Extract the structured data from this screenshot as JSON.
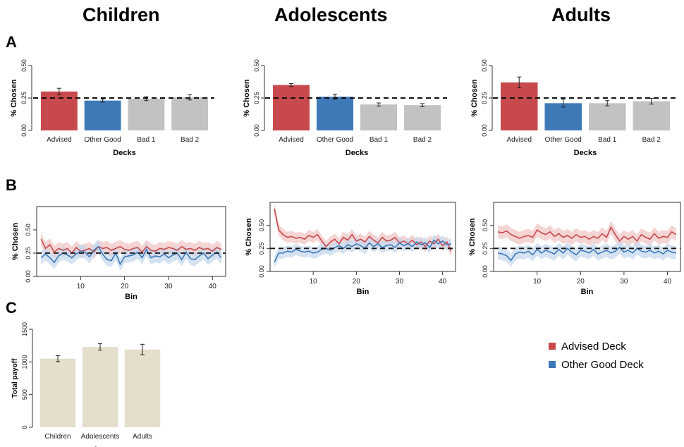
{
  "group_titles": [
    "Children",
    "Adolescents",
    "Adults"
  ],
  "panel_letters": [
    "A",
    "B",
    "C"
  ],
  "legend": [
    {
      "label": "Advised Deck",
      "color": "#c8494b"
    },
    {
      "label": "Other Good Deck",
      "color": "#3f79b8"
    }
  ],
  "colors": {
    "advised": "#c8494b",
    "other_good": "#3f79b8",
    "bad": "#c2c2c2",
    "payoff": "#e3dfcc",
    "advised_band": "#f2c6c6",
    "other_band": "#c6d8ee"
  },
  "chart_data": [
    {
      "type": "bar",
      "group": "Children",
      "categories": [
        "Advised",
        "Other Good",
        "Bad 1",
        "Bad 2"
      ],
      "values": [
        0.3,
        0.23,
        0.245,
        0.255
      ],
      "errors": [
        0.025,
        0.012,
        0.015,
        0.02
      ],
      "reference_line": 0.25,
      "xlabel": "Decks",
      "ylabel": "% Chosen",
      "ylim": [
        0,
        0.5
      ],
      "yticks": [
        "0.00",
        "0.25",
        "0.50"
      ]
    },
    {
      "type": "bar",
      "group": "Adolescents",
      "categories": [
        "Advised",
        "Other Good",
        "Bad 1",
        "Bad 2"
      ],
      "values": [
        0.35,
        0.26,
        0.2,
        0.195
      ],
      "errors": [
        0.012,
        0.02,
        0.012,
        0.012
      ],
      "reference_line": 0.25,
      "xlabel": "Decks",
      "ylabel": "% Chosen",
      "ylim": [
        0,
        0.5
      ],
      "yticks": [
        "0.00",
        "0.25",
        "0.50"
      ]
    },
    {
      "type": "bar",
      "group": "Adults",
      "categories": [
        "Advised",
        "Other Good",
        "Bad 1",
        "Bad 2"
      ],
      "values": [
        0.37,
        0.21,
        0.21,
        0.225
      ],
      "errors": [
        0.042,
        0.03,
        0.02,
        0.022
      ],
      "reference_line": 0.25,
      "xlabel": "Decks",
      "ylabel": "% Chosen",
      "ylim": [
        0,
        0.5
      ],
      "yticks": [
        "0.00",
        "0.25",
        "0.50"
      ]
    },
    {
      "type": "line",
      "group": "Children",
      "xlabel": "Bin",
      "ylabel": "% Chosen",
      "xlim": [
        0,
        43
      ],
      "ylim": [
        0,
        0.75
      ],
      "xticks": [
        10,
        20,
        30,
        40
      ],
      "yticks": [
        "0.00",
        "0.25",
        "0.50"
      ],
      "reference_line": 0.25,
      "band_halfwidth": 0.07,
      "x": [
        1,
        2,
        3,
        4,
        5,
        6,
        7,
        8,
        9,
        10,
        11,
        12,
        13,
        14,
        15,
        16,
        17,
        18,
        19,
        20,
        21,
        22,
        23,
        24,
        25,
        26,
        27,
        28,
        29,
        30,
        31,
        32,
        33,
        34,
        35,
        36,
        37,
        38,
        39,
        40,
        41,
        42
      ],
      "series": [
        {
          "key": "advised",
          "values": [
            0.4,
            0.3,
            0.34,
            0.26,
            0.3,
            0.28,
            0.3,
            0.25,
            0.31,
            0.27,
            0.28,
            0.3,
            0.26,
            0.32,
            0.3,
            0.31,
            0.28,
            0.3,
            0.32,
            0.29,
            0.28,
            0.3,
            0.31,
            0.26,
            0.32,
            0.28,
            0.27,
            0.3,
            0.29,
            0.31,
            0.3,
            0.28,
            0.32,
            0.29,
            0.3,
            0.28,
            0.31,
            0.29,
            0.3,
            0.27,
            0.31,
            0.29
          ]
        },
        {
          "key": "other_good",
          "values": [
            0.2,
            0.24,
            0.2,
            0.15,
            0.22,
            0.25,
            0.23,
            0.2,
            0.24,
            0.27,
            0.26,
            0.21,
            0.28,
            0.32,
            0.24,
            0.18,
            0.17,
            0.25,
            0.13,
            0.21,
            0.22,
            0.23,
            0.26,
            0.2,
            0.29,
            0.2,
            0.22,
            0.21,
            0.24,
            0.2,
            0.23,
            0.25,
            0.18,
            0.26,
            0.19,
            0.18,
            0.22,
            0.25,
            0.19,
            0.23,
            0.26,
            0.2
          ]
        }
      ]
    },
    {
      "type": "line",
      "group": "Adolescents",
      "xlabel": "Bin",
      "ylabel": "% Chosen",
      "xlim": [
        0,
        43
      ],
      "ylim": [
        0,
        0.75
      ],
      "xticks": [
        10,
        20,
        30,
        40
      ],
      "yticks": [
        "0.00",
        "0.25",
        "0.50"
      ],
      "reference_line": 0.25,
      "band_halfwidth": 0.06,
      "x": [
        1,
        2,
        3,
        4,
        5,
        6,
        7,
        8,
        9,
        10,
        11,
        12,
        13,
        14,
        15,
        16,
        17,
        18,
        19,
        20,
        21,
        22,
        23,
        24,
        25,
        26,
        27,
        28,
        29,
        30,
        31,
        32,
        33,
        34,
        35,
        36,
        37,
        38,
        39,
        40,
        41,
        42
      ],
      "series": [
        {
          "key": "advised",
          "values": [
            0.68,
            0.45,
            0.4,
            0.37,
            0.38,
            0.36,
            0.37,
            0.35,
            0.39,
            0.37,
            0.4,
            0.33,
            0.27,
            0.32,
            0.35,
            0.3,
            0.37,
            0.34,
            0.4,
            0.33,
            0.35,
            0.32,
            0.38,
            0.34,
            0.31,
            0.37,
            0.33,
            0.34,
            0.37,
            0.31,
            0.33,
            0.3,
            0.34,
            0.29,
            0.32,
            0.27,
            0.33,
            0.3,
            0.35,
            0.28,
            0.32,
            0.22
          ]
        },
        {
          "key": "other_good",
          "values": [
            0.1,
            0.2,
            0.2,
            0.22,
            0.21,
            0.24,
            0.22,
            0.21,
            0.22,
            0.2,
            0.21,
            0.24,
            0.25,
            0.23,
            0.26,
            0.28,
            0.25,
            0.29,
            0.27,
            0.3,
            0.28,
            0.25,
            0.31,
            0.27,
            0.3,
            0.26,
            0.28,
            0.29,
            0.26,
            0.31,
            0.28,
            0.3,
            0.27,
            0.32,
            0.29,
            0.31,
            0.26,
            0.34,
            0.3,
            0.33,
            0.29,
            0.3
          ]
        }
      ]
    },
    {
      "type": "line",
      "group": "Adults",
      "xlabel": "Bin",
      "ylabel": "% Chosen",
      "xlim": [
        0,
        43
      ],
      "ylim": [
        0,
        0.75
      ],
      "xticks": [
        10,
        20,
        30,
        40
      ],
      "yticks": [
        "0.00",
        "0.25",
        "0.50"
      ],
      "reference_line": 0.25,
      "band_halfwidth": 0.07,
      "x": [
        1,
        2,
        3,
        4,
        5,
        6,
        7,
        8,
        9,
        10,
        11,
        12,
        13,
        14,
        15,
        16,
        17,
        18,
        19,
        20,
        21,
        22,
        23,
        24,
        25,
        26,
        27,
        28,
        29,
        30,
        31,
        32,
        33,
        34,
        35,
        36,
        37,
        38,
        39,
        40,
        41,
        42
      ],
      "series": [
        {
          "key": "advised",
          "values": [
            0.43,
            0.42,
            0.44,
            0.4,
            0.38,
            0.36,
            0.38,
            0.39,
            0.37,
            0.45,
            0.42,
            0.4,
            0.43,
            0.38,
            0.41,
            0.37,
            0.39,
            0.36,
            0.4,
            0.37,
            0.38,
            0.35,
            0.38,
            0.36,
            0.41,
            0.37,
            0.48,
            0.4,
            0.33,
            0.38,
            0.35,
            0.38,
            0.33,
            0.4,
            0.37,
            0.35,
            0.41,
            0.36,
            0.38,
            0.37,
            0.43,
            0.4
          ]
        },
        {
          "key": "other_good",
          "values": [
            0.2,
            0.19,
            0.17,
            0.12,
            0.19,
            0.21,
            0.2,
            0.22,
            0.18,
            0.24,
            0.2,
            0.23,
            0.21,
            0.19,
            0.24,
            0.2,
            0.25,
            0.21,
            0.18,
            0.23,
            0.22,
            0.2,
            0.24,
            0.19,
            0.21,
            0.23,
            0.2,
            0.22,
            0.26,
            0.21,
            0.23,
            0.2,
            0.25,
            0.22,
            0.21,
            0.23,
            0.2,
            0.22,
            0.19,
            0.23,
            0.21,
            0.2
          ]
        }
      ]
    },
    {
      "type": "bar",
      "panel": "C",
      "categories": [
        "Children",
        "Adolescents",
        "Adults"
      ],
      "values": [
        1050,
        1230,
        1190
      ],
      "errors": [
        45,
        50,
        80
      ],
      "xlabel": "Age",
      "ylabel": "Total payoff",
      "ylim": [
        0,
        1500
      ],
      "yticks": [
        "0",
        "500",
        "1000",
        "1500"
      ]
    }
  ]
}
